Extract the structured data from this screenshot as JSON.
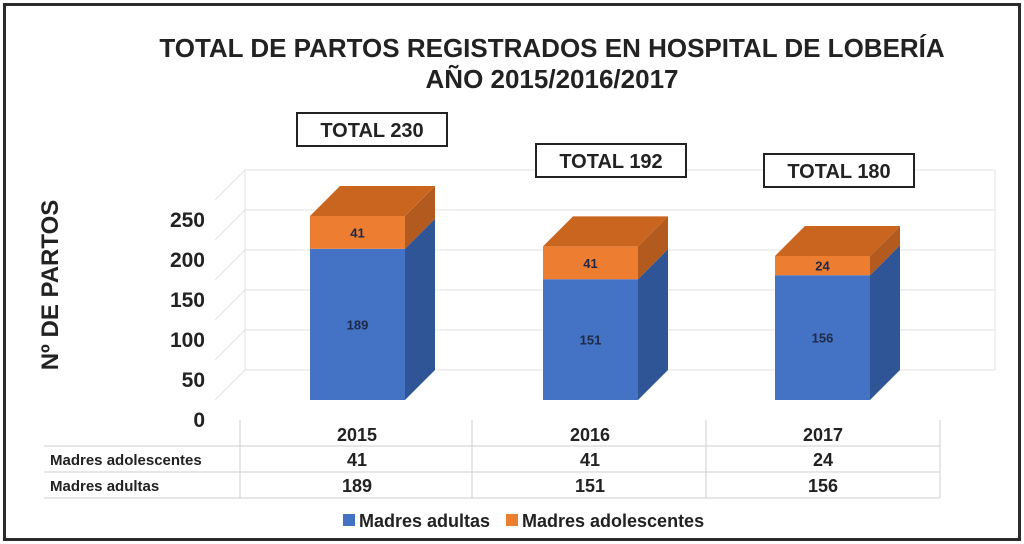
{
  "chart_data": {
    "type": "bar",
    "stacked": true,
    "three_d": true,
    "title": "TOTAL DE PARTOS REGISTRADOS EN HOSPITAL DE LOBERÍA",
    "subtitle": "AÑO 2015/2016/2017",
    "ylabel": "Nº DE PARTOS",
    "xlabel": "",
    "ylim": [
      0,
      250
    ],
    "yticks": [
      "0",
      "50",
      "100",
      "150",
      "200",
      "250"
    ],
    "categories": [
      "2015",
      "2016",
      "2017"
    ],
    "series": [
      {
        "name": "Madres adultas",
        "values": [
          189,
          151,
          156
        ],
        "labels": [
          "189",
          "151",
          "156"
        ],
        "color": "#4472c4",
        "side_color": "#2f5597",
        "top_color": "#5b84cf"
      },
      {
        "name": "Madres adolescentes",
        "values": [
          41,
          41,
          24
        ],
        "labels": [
          "41",
          "41",
          "24"
        ],
        "color": "#ed7d31",
        "side_color": "#b35a1f",
        "top_color": "#c9651f"
      }
    ],
    "totals": [
      "TOTAL 230",
      "TOTAL 192",
      "TOTAL 180"
    ],
    "table": {
      "rows": [
        {
          "label": "Madres adolescentes",
          "values": [
            "41",
            "41",
            "24"
          ]
        },
        {
          "label": "Madres adultas",
          "values": [
            "189",
            "151",
            "156"
          ]
        }
      ]
    },
    "legend": {
      "position": "bottom",
      "entries": [
        "Madres adultas",
        "Madres adolescentes"
      ]
    },
    "grid": true
  }
}
